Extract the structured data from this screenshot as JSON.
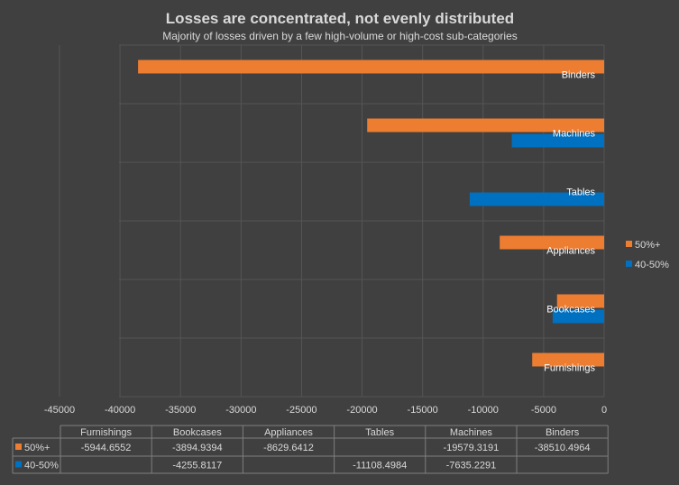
{
  "chart_data": {
    "type": "bar",
    "orientation": "horizontal",
    "title": "Losses are concentrated, not evenly distributed",
    "subtitle": "Majority of losses driven by a few high-volume or high-cost sub-categories",
    "categories": [
      "Binders",
      "Machines",
      "Tables",
      "Appliances",
      "Bookcases",
      "Furnishings"
    ],
    "table_order": [
      "Furnishings",
      "Bookcases",
      "Appliances",
      "Tables",
      "Machines",
      "Binders"
    ],
    "series": [
      {
        "name": "50%+",
        "color": "#ed7d31",
        "values": {
          "Furnishings": -5944.6552,
          "Bookcases": -3894.9394,
          "Appliances": -8629.6412,
          "Tables": null,
          "Machines": -19579.3191,
          "Binders": -38510.4964
        },
        "labels": {
          "Furnishings": "-5944.6552",
          "Bookcases": "-3894.9394",
          "Appliances": "-8629.6412",
          "Tables": "",
          "Machines": "-19579.3191",
          "Binders": "-38510.4964"
        }
      },
      {
        "name": "40-50%",
        "color": "#0070c0",
        "values": {
          "Furnishings": null,
          "Bookcases": -4255.8117,
          "Appliances": null,
          "Tables": -11108.4984,
          "Machines": -7635.2291,
          "Binders": null
        },
        "labels": {
          "Furnishings": "",
          "Bookcases": "-4255.8117",
          "Appliances": "",
          "Tables": "-11108.4984",
          "Machines": "-7635.2291",
          "Binders": ""
        }
      }
    ],
    "xlim": [
      -45000,
      0
    ],
    "xticks": [
      -45000,
      -40000,
      -35000,
      -30000,
      -25000,
      -20000,
      -15000,
      -10000,
      -5000,
      0
    ],
    "grid": true,
    "legend": "right",
    "data_table": true
  }
}
